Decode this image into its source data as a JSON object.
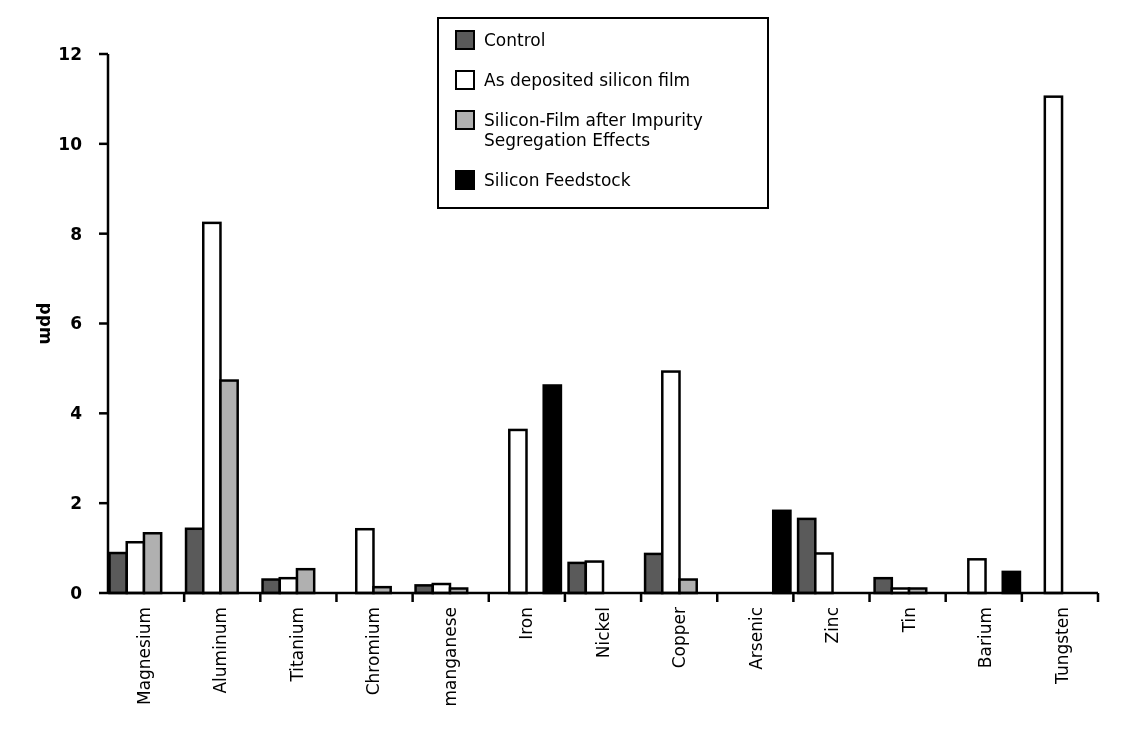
{
  "chart_data": {
    "type": "bar",
    "ylabel": "ppm",
    "categories": [
      "Magnesium",
      "Aluminum",
      "Titanium",
      "Chromium",
      "manganese",
      "Iron",
      "Nickel",
      "Copper",
      "Arsenic",
      "Zinc",
      "Tin",
      "Barium",
      "Tungsten"
    ],
    "series": [
      {
        "name": "Control",
        "color": "#5a5a5a",
        "values": [
          0.89,
          1.43,
          0.3,
          null,
          0.17,
          null,
          0.67,
          0.87,
          null,
          1.65,
          0.33,
          null,
          null
        ]
      },
      {
        "name": "As deposited silicon film",
        "color": "#ffffff",
        "values": [
          1.13,
          8.24,
          0.33,
          1.42,
          0.2,
          3.63,
          0.7,
          4.93,
          null,
          0.88,
          0.1,
          0.75,
          11.05
        ]
      },
      {
        "name": "Silicon-Film after Impurity Segregation Effects",
        "color": "#b0b0b0",
        "values": [
          1.33,
          4.73,
          0.53,
          0.13,
          0.1,
          null,
          null,
          0.3,
          null,
          null,
          0.1,
          null,
          null
        ]
      },
      {
        "name": "Silicon Feedstock",
        "color": "#000000",
        "values": [
          null,
          null,
          null,
          null,
          null,
          4.62,
          null,
          null,
          1.83,
          null,
          null,
          0.47,
          null
        ]
      }
    ],
    "ylim": [
      0,
      12
    ],
    "yticks": [
      0,
      2,
      4,
      6,
      8,
      10,
      12
    ],
    "legend": "top",
    "grid": false
  }
}
